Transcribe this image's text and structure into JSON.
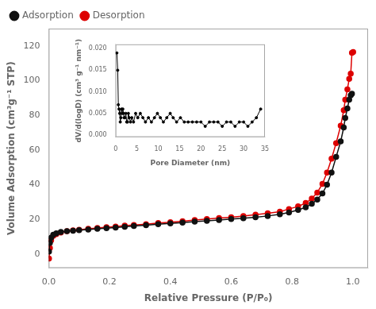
{
  "chart_data": [
    {
      "type": "line",
      "xlabel": "Relative Pressure (P/P₀)",
      "ylabel": "Volume Adsorption (cm³g⁻¹ STP)",
      "xlim": [
        0.0,
        1.05
      ],
      "ylim": [
        -8,
        130
      ],
      "xticks": [
        {
          "value": 0.0,
          "label": "0.0"
        },
        0.2,
        0.4,
        0.6,
        0.8,
        {
          "value": 1.0,
          "label": "1.0"
        }
      ],
      "yticks": [
        0,
        20,
        40,
        60,
        80,
        100,
        120
      ],
      "grid": false,
      "legend": "upper left",
      "series": [
        {
          "name": "Adsorption",
          "color": "#111111",
          "marker": "o",
          "x": [
            0.001,
            0.004,
            0.008,
            0.015,
            0.025,
            0.04,
            0.06,
            0.08,
            0.1,
            0.13,
            0.16,
            0.19,
            0.22,
            0.25,
            0.28,
            0.32,
            0.36,
            0.4,
            0.44,
            0.48,
            0.52,
            0.56,
            0.6,
            0.64,
            0.68,
            0.72,
            0.76,
            0.79,
            0.82,
            0.845,
            0.865,
            0.883,
            0.9,
            0.915,
            0.93,
            0.945,
            0.96,
            0.97,
            0.975,
            0.982,
            0.988,
            0.993,
            0.997
          ],
          "values": [
            1.5,
            6.5,
            9.5,
            11.2,
            12.0,
            12.8,
            13.2,
            13.5,
            13.8,
            14.2,
            14.6,
            15.0,
            15.3,
            15.8,
            16.2,
            16.7,
            17.2,
            17.7,
            18.2,
            18.7,
            19.2,
            19.7,
            20.2,
            20.7,
            21.3,
            22.0,
            23.0,
            24.0,
            25.5,
            27.0,
            29.0,
            31.5,
            35.0,
            40.0,
            47.0,
            56.0,
            65.0,
            73.0,
            78.5,
            84.0,
            89.0,
            91.5,
            92.5
          ]
        },
        {
          "name": "Desorption",
          "color": "#dd0000",
          "marker": "o",
          "x": [
            0.001,
            0.004,
            0.008,
            0.015,
            0.025,
            0.04,
            0.06,
            0.08,
            0.1,
            0.13,
            0.16,
            0.19,
            0.22,
            0.25,
            0.28,
            0.32,
            0.36,
            0.4,
            0.44,
            0.48,
            0.52,
            0.56,
            0.6,
            0.64,
            0.68,
            0.72,
            0.76,
            0.79,
            0.82,
            0.845,
            0.865,
            0.883,
            0.9,
            0.915,
            0.93,
            0.945,
            0.96,
            0.97,
            0.975,
            0.982,
            0.988,
            0.993,
            0.997,
            1.001
          ],
          "values": [
            -2.5,
            3.5,
            8.0,
            10.5,
            11.5,
            12.5,
            13.2,
            13.7,
            14.1,
            14.6,
            15.1,
            15.5,
            15.9,
            16.4,
            16.8,
            17.3,
            17.9,
            18.4,
            19.0,
            19.6,
            20.2,
            20.8,
            21.3,
            21.9,
            22.7,
            23.5,
            24.5,
            26.0,
            27.5,
            29.5,
            32.0,
            35.5,
            40.5,
            47.0,
            55.0,
            64.0,
            74.0,
            83.0,
            89.0,
            95.0,
            101.0,
            104.0,
            116.0,
            116.5
          ]
        }
      ]
    },
    {
      "type": "line",
      "xlabel": "Pore Diameter (nm)",
      "ylabel": "dV/d(logD) (cm³ g⁻¹ nm⁻¹)",
      "xlim": [
        0,
        35
      ],
      "ylim": [
        -0.0005,
        0.021
      ],
      "xticks": [
        0,
        5,
        10,
        15,
        20,
        25,
        30,
        35
      ],
      "yticks": [
        {
          "value": 0.0,
          "label": "0.000"
        },
        0.005,
        {
          "value": 0.01,
          "label": "0.010"
        },
        0.015,
        {
          "value": 0.02,
          "label": "0.020"
        }
      ],
      "grid": false,
      "color": "black",
      "marker": "o",
      "x": [
        0.3,
        0.5,
        0.65,
        0.8,
        0.95,
        1.1,
        1.25,
        1.4,
        1.55,
        1.7,
        1.85,
        2.0,
        2.2,
        2.4,
        2.6,
        2.8,
        3.0,
        3.2,
        3.5,
        3.8,
        4.2,
        4.7,
        5.2,
        5.8,
        6.4,
        7.0,
        7.7,
        8.4,
        9.1,
        9.8,
        10.5,
        11.2,
        12.0,
        12.8,
        13.5,
        14.3,
        15.2,
        16.1,
        17.0,
        18.0,
        19.0,
        20.0,
        21.0,
        22.0,
        23.0,
        24.0,
        25.0,
        26.0,
        27.0,
        28.0,
        29.0,
        30.0,
        31.0,
        32.0,
        33.0,
        34.0
      ],
      "values": [
        0.019,
        0.015,
        0.007,
        0.006,
        0.005,
        0.003,
        0.004,
        0.006,
        0.005,
        0.006,
        0.005,
        0.004,
        0.004,
        0.005,
        0.003,
        0.003,
        0.005,
        0.004,
        0.003,
        0.004,
        0.003,
        0.005,
        0.004,
        0.005,
        0.004,
        0.003,
        0.004,
        0.003,
        0.004,
        0.005,
        0.004,
        0.003,
        0.004,
        0.005,
        0.004,
        0.003,
        0.004,
        0.003,
        0.003,
        0.003,
        0.003,
        0.003,
        0.002,
        0.003,
        0.003,
        0.003,
        0.002,
        0.003,
        0.003,
        0.002,
        0.003,
        0.003,
        0.002,
        0.003,
        0.004,
        0.006
      ]
    }
  ]
}
